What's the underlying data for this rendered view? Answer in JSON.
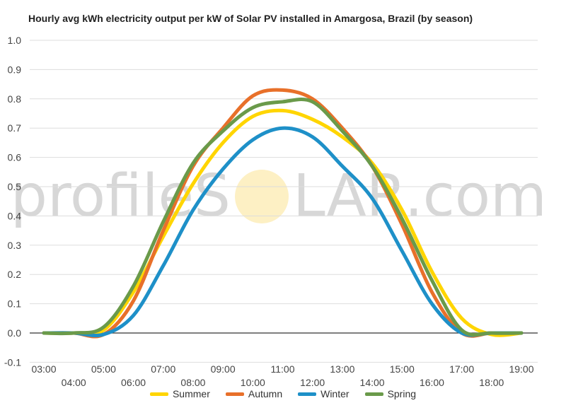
{
  "watermark": {
    "left": "profileS",
    "right": "LAR.com"
  },
  "chart_data": {
    "type": "line",
    "title": "Hourly avg kWh electricity output per kW of Solar PV installed in Amargosa, Brazil (by season)",
    "xlabel": "",
    "ylabel": "",
    "ylim": [
      -0.1,
      1.0
    ],
    "xlim": [
      3,
      19
    ],
    "grid": true,
    "legend_position": "bottom",
    "y_ticks": [
      "-0.1",
      "0.0",
      "0.1",
      "0.2",
      "0.3",
      "0.4",
      "0.5",
      "0.6",
      "0.7",
      "0.8",
      "0.9",
      "1.0"
    ],
    "x_ticks": [
      {
        "x": 3,
        "label": "03:00"
      },
      {
        "x": 4,
        "label": "04:00"
      },
      {
        "x": 5,
        "label": "05:00"
      },
      {
        "x": 6,
        "label": "06:00"
      },
      {
        "x": 7,
        "label": "07:00"
      },
      {
        "x": 8,
        "label": "08:00"
      },
      {
        "x": 9,
        "label": "09:00"
      },
      {
        "x": 10,
        "label": "10:00"
      },
      {
        "x": 11,
        "label": "11:00"
      },
      {
        "x": 12,
        "label": "12:00"
      },
      {
        "x": 13,
        "label": "13:00"
      },
      {
        "x": 14,
        "label": "14:00"
      },
      {
        "x": 15,
        "label": "15:00"
      },
      {
        "x": 16,
        "label": "16:00"
      },
      {
        "x": 17,
        "label": "17:00"
      },
      {
        "x": 18,
        "label": "18:00"
      },
      {
        "x": 19,
        "label": "19:00"
      }
    ],
    "x": [
      3,
      4,
      5,
      6,
      7,
      8,
      9,
      10,
      11,
      12,
      13,
      14,
      15,
      16,
      17,
      18,
      19
    ],
    "series": [
      {
        "name": "Summer",
        "color": "#FFD500",
        "values": [
          0.0,
          0.0,
          0.01,
          0.14,
          0.33,
          0.51,
          0.65,
          0.74,
          0.76,
          0.73,
          0.67,
          0.58,
          0.42,
          0.21,
          0.05,
          -0.005,
          0.0
        ]
      },
      {
        "name": "Autumn",
        "color": "#E8702A",
        "values": [
          0.0,
          0.0,
          -0.005,
          0.11,
          0.35,
          0.57,
          0.7,
          0.81,
          0.83,
          0.8,
          0.7,
          0.57,
          0.37,
          0.14,
          0.0,
          0.0,
          0.0
        ]
      },
      {
        "name": "Winter",
        "color": "#1E90C8",
        "values": [
          0.0,
          0.0,
          -0.005,
          0.06,
          0.23,
          0.42,
          0.56,
          0.66,
          0.7,
          0.67,
          0.57,
          0.46,
          0.28,
          0.1,
          0.0,
          0.0,
          0.0
        ]
      },
      {
        "name": "Spring",
        "color": "#6A9A4A",
        "values": [
          0.0,
          0.0,
          0.02,
          0.16,
          0.38,
          0.58,
          0.69,
          0.77,
          0.79,
          0.79,
          0.69,
          0.57,
          0.39,
          0.18,
          0.01,
          0.0,
          0.0
        ]
      }
    ]
  }
}
